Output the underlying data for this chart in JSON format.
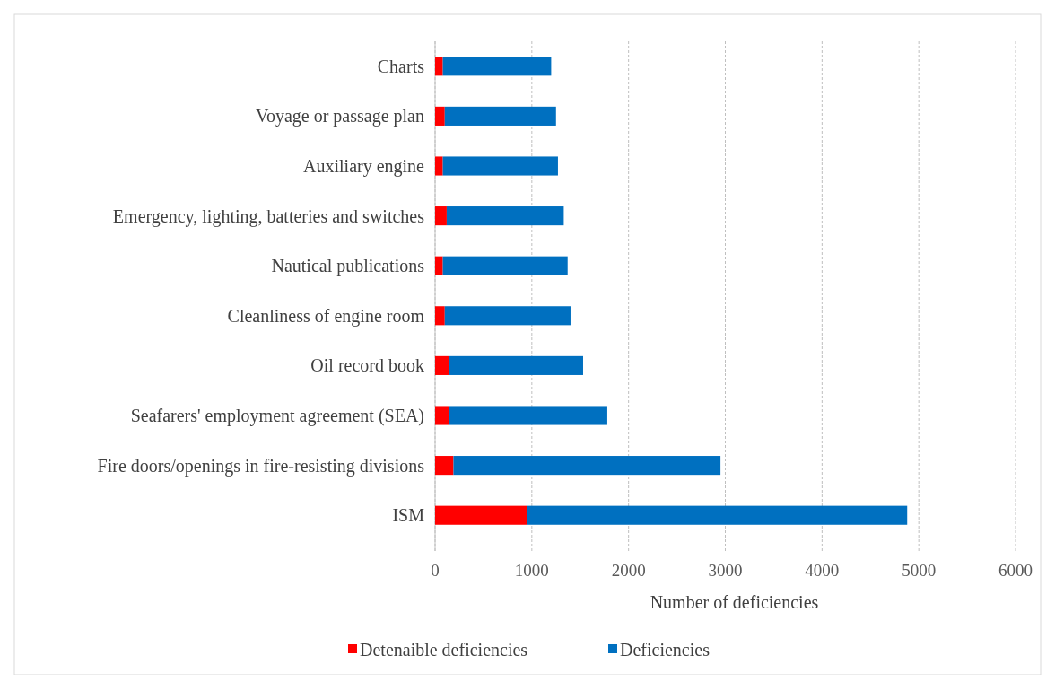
{
  "chart_data": {
    "type": "bar",
    "orientation": "horizontal",
    "stacked": true,
    "categories": [
      "Charts",
      "Voyage or passage plan",
      "Auxiliary engine",
      "Emergency, lighting, batteries and switches",
      "Nautical publications",
      "Cleanliness of engine room",
      "Oil record book",
      "Seafarers' employment agreement (SEA)",
      "Fire doors/openings in fire-resisting divisions",
      "ISM"
    ],
    "series": [
      {
        "name": "Detenaible deficiencies",
        "color": "#ff0000",
        "values": [
          80,
          100,
          80,
          120,
          80,
          100,
          140,
          140,
          190,
          950
        ]
      },
      {
        "name": "Deficiencies",
        "color": "#0070c0",
        "values": [
          1120,
          1150,
          1190,
          1210,
          1290,
          1300,
          1390,
          1640,
          2760,
          3930
        ]
      }
    ],
    "xlim": [
      0,
      6000
    ],
    "xticks": [
      0,
      1000,
      2000,
      3000,
      4000,
      5000,
      6000
    ],
    "xlabel": "Number of deficiencies",
    "grid": "x",
    "legend": "bottom"
  }
}
